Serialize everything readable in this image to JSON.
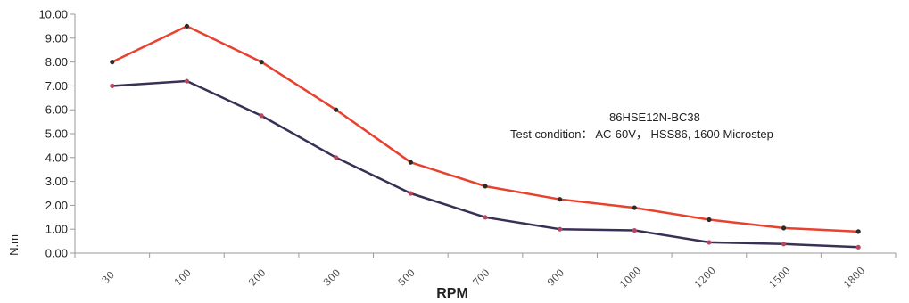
{
  "chart_data": {
    "type": "line",
    "categories": [
      "30",
      "100",
      "200",
      "300",
      "500",
      "700",
      "900",
      "1000",
      "1200",
      "1500",
      "1800"
    ],
    "series": [
      {
        "color": "#e8412e",
        "marker_color": "#2b2b2b",
        "values": [
          8.0,
          9.5,
          8.0,
          6.0,
          3.8,
          2.8,
          2.25,
          1.9,
          1.4,
          1.05,
          0.9
        ]
      },
      {
        "color": "#3a2f55",
        "marker_color": "#b7475f",
        "values": [
          7.0,
          7.2,
          5.75,
          4.0,
          2.5,
          1.5,
          1.0,
          0.95,
          0.45,
          0.38,
          0.25
        ]
      }
    ],
    "y_ticks": [
      "0.00",
      "1.00",
      "2.00",
      "3.00",
      "4.00",
      "5.00",
      "6.00",
      "7.00",
      "8.00",
      "9.00",
      "10.00"
    ],
    "ylim": [
      0,
      10
    ],
    "xlabel": "RPM",
    "ylabel": "N.m",
    "annotation": {
      "line1": "86HSE12N-BC38",
      "line2": "Test condition：   AC-60V，  HSS86, 1600 Microstep"
    },
    "grid": false,
    "legend": "none"
  }
}
